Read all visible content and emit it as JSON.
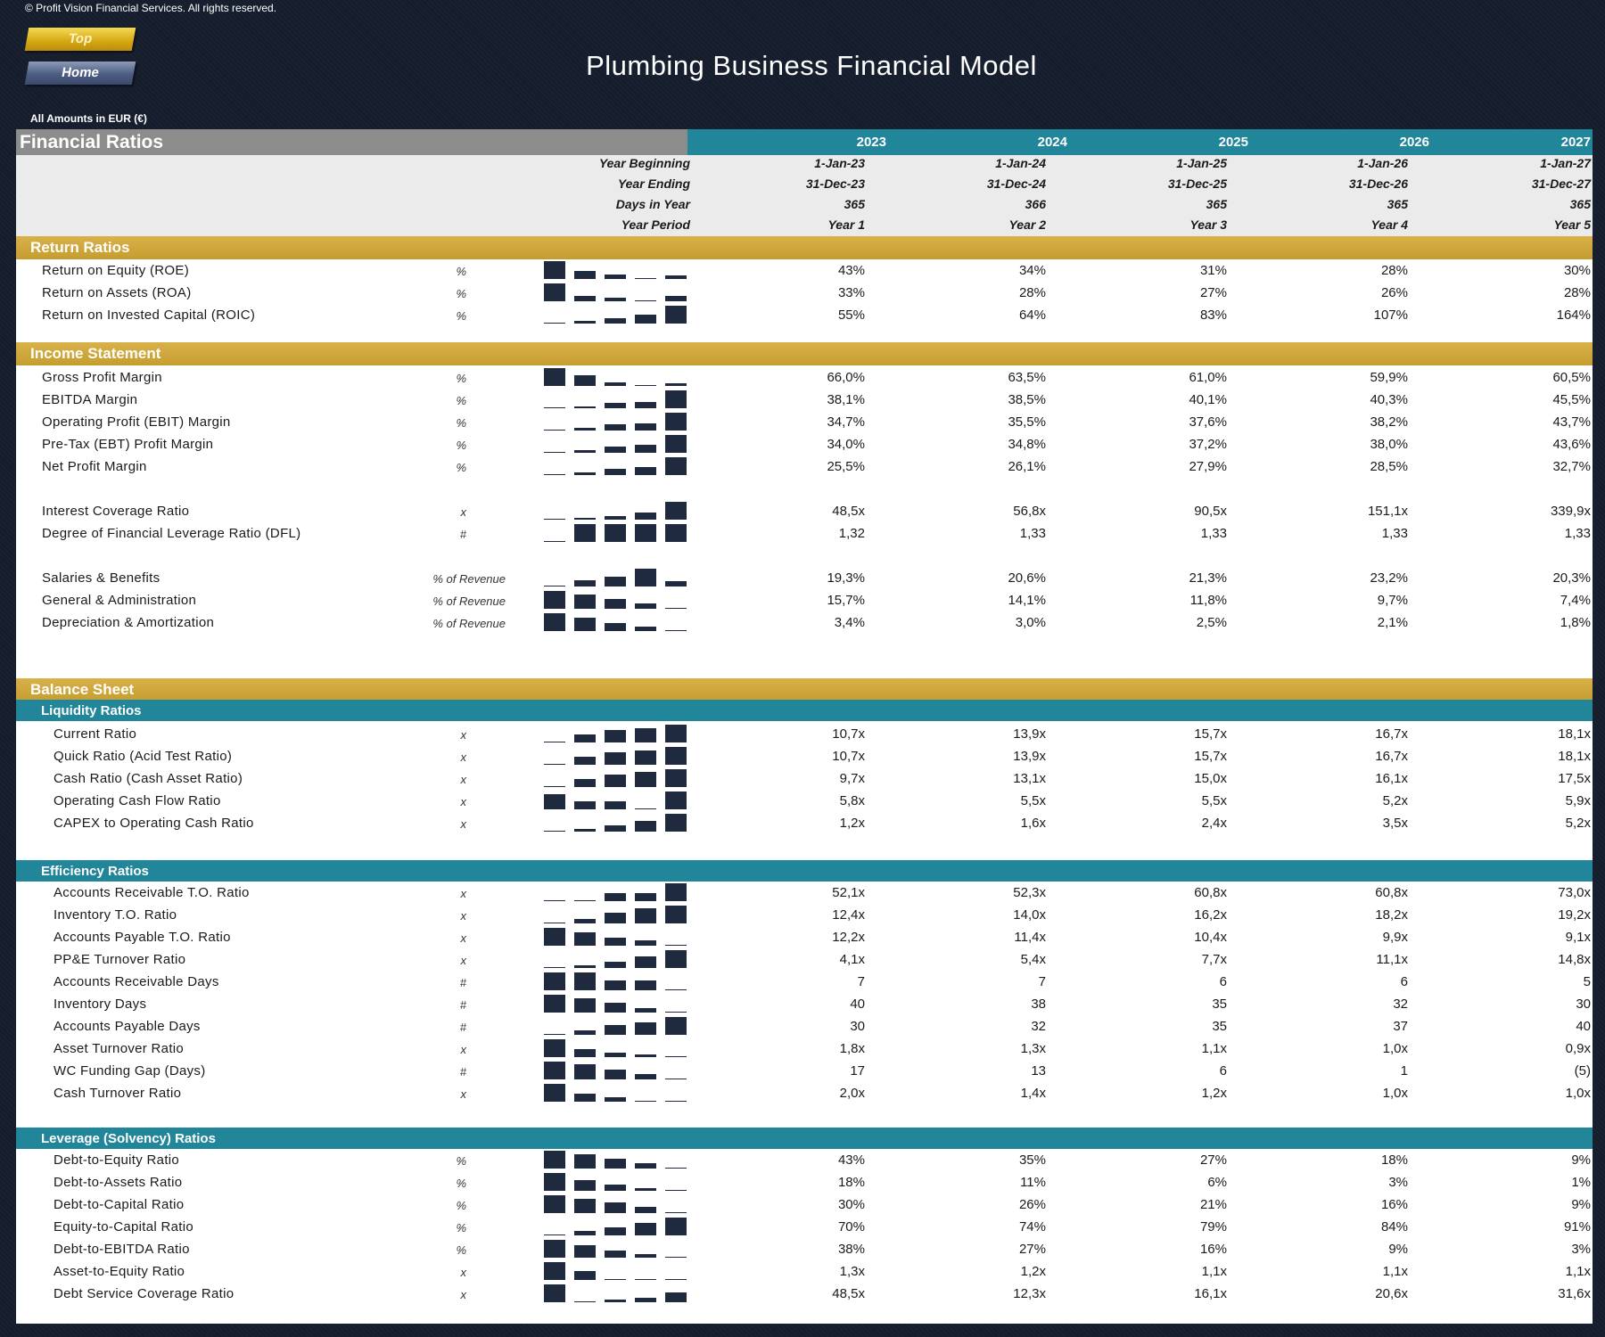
{
  "copyright": "© Profit Vision Financial Services. All rights reserved.",
  "nav": {
    "top_label": "Top",
    "home_label": "Home"
  },
  "title": "Plumbing Business Financial Model",
  "amounts_note": "All Amounts in  EUR (€)",
  "header": {
    "title": "Financial Ratios",
    "years": [
      "2023",
      "2024",
      "2025",
      "2026",
      "2027"
    ],
    "info_rows": [
      {
        "label": "Year Beginning",
        "values": [
          "1-Jan-23",
          "1-Jan-24",
          "1-Jan-25",
          "1-Jan-26",
          "1-Jan-27"
        ]
      },
      {
        "label": "Year Ending",
        "values": [
          "31-Dec-23",
          "31-Dec-24",
          "31-Dec-25",
          "31-Dec-26",
          "31-Dec-27"
        ]
      },
      {
        "label": "Days in Year",
        "values": [
          "365",
          "366",
          "365",
          "365",
          "365"
        ]
      },
      {
        "label": "Year Period",
        "values": [
          "Year 1",
          "Year 2",
          "Year 3",
          "Year 4",
          "Year 5"
        ]
      }
    ]
  },
  "sections": [
    {
      "kind": "section",
      "title": "Return Ratios"
    },
    {
      "kind": "row",
      "label": "Return on Equity (ROE)",
      "unit": "%",
      "values": [
        "43%",
        "34%",
        "31%",
        "28%",
        "30%"
      ],
      "spark": [
        43,
        34,
        31,
        28,
        30
      ]
    },
    {
      "kind": "row",
      "label": "Return on Assets (ROA)",
      "unit": "%",
      "values": [
        "33%",
        "28%",
        "27%",
        "26%",
        "28%"
      ],
      "spark": [
        33,
        28,
        27,
        26,
        28
      ]
    },
    {
      "kind": "row",
      "label": "Return on Invested Capital (ROIC)",
      "unit": "%",
      "values": [
        "55%",
        "64%",
        "83%",
        "107%",
        "164%"
      ],
      "spark": [
        55,
        64,
        83,
        107,
        164
      ]
    },
    {
      "kind": "section",
      "title": "Income Statement"
    },
    {
      "kind": "row",
      "label": "Gross Profit Margin",
      "unit": "%",
      "values": [
        "66,0%",
        "63,5%",
        "61,0%",
        "59,9%",
        "60,5%"
      ],
      "spark": [
        66.0,
        63.5,
        61.0,
        59.9,
        60.5
      ]
    },
    {
      "kind": "row",
      "label": "EBITDA Margin",
      "unit": "%",
      "values": [
        "38,1%",
        "38,5%",
        "40,1%",
        "40,3%",
        "45,5%"
      ],
      "spark": [
        38.1,
        38.5,
        40.1,
        40.3,
        45.5
      ]
    },
    {
      "kind": "row",
      "label": "Operating Profit (EBIT) Margin",
      "unit": "%",
      "values": [
        "34,7%",
        "35,5%",
        "37,6%",
        "38,2%",
        "43,7%"
      ],
      "spark": [
        34.7,
        35.5,
        37.6,
        38.2,
        43.7
      ]
    },
    {
      "kind": "row",
      "label": "Pre-Tax (EBT) Profit Margin",
      "unit": "%",
      "values": [
        "34,0%",
        "34,8%",
        "37,2%",
        "38,0%",
        "43,6%"
      ],
      "spark": [
        34.0,
        34.8,
        37.2,
        38.0,
        43.6
      ]
    },
    {
      "kind": "row",
      "label": "Net Profit Margin",
      "unit": "%",
      "values": [
        "25,5%",
        "26,1%",
        "27,9%",
        "28,5%",
        "32,7%"
      ],
      "spark": [
        25.5,
        26.1,
        27.9,
        28.5,
        32.7
      ]
    },
    {
      "kind": "row",
      "label": "Interest Coverage Ratio",
      "unit": "x",
      "values": [
        "48,5x",
        "56,8x",
        "90,5x",
        "151,1x",
        "339,9x"
      ],
      "spark": [
        48.5,
        56.8,
        90.5,
        151.1,
        339.9
      ]
    },
    {
      "kind": "row",
      "label": "Degree of Financial Leverage Ratio (DFL)",
      "unit": "#",
      "values": [
        "1,32",
        "1,33",
        "1,33",
        "1,33",
        "1,33"
      ],
      "spark": [
        1.32,
        1.33,
        1.33,
        1.33,
        1.33
      ]
    },
    {
      "kind": "row",
      "label": "Salaries & Benefits",
      "unit": "% of Revenue",
      "values": [
        "19,3%",
        "20,6%",
        "21,3%",
        "23,2%",
        "20,3%"
      ],
      "spark": [
        19.3,
        20.6,
        21.3,
        23.2,
        20.3
      ]
    },
    {
      "kind": "row",
      "label": "General & Administration",
      "unit": "% of Revenue",
      "values": [
        "15,7%",
        "14,1%",
        "11,8%",
        "9,7%",
        "7,4%"
      ],
      "spark": [
        15.7,
        14.1,
        11.8,
        9.7,
        7.4
      ]
    },
    {
      "kind": "row",
      "label": "Depreciation & Amortization",
      "unit": "% of Revenue",
      "values": [
        "3,4%",
        "3,0%",
        "2,5%",
        "2,1%",
        "1,8%"
      ],
      "spark": [
        3.4,
        3.0,
        2.5,
        2.1,
        1.8
      ]
    },
    {
      "kind": "section",
      "title": "Balance Sheet"
    },
    {
      "kind": "subsection",
      "title": "Liquidity Ratios"
    },
    {
      "kind": "row",
      "label": "Current Ratio",
      "unit": "x",
      "values": [
        "10,7x",
        "13,9x",
        "15,7x",
        "16,7x",
        "18,1x"
      ],
      "spark": [
        10.7,
        13.9,
        15.7,
        16.7,
        18.1
      ]
    },
    {
      "kind": "row",
      "label": "Quick Ratio (Acid Test Ratio)",
      "unit": "x",
      "values": [
        "10,7x",
        "13,9x",
        "15,7x",
        "16,7x",
        "18,1x"
      ],
      "spark": [
        10.7,
        13.9,
        15.7,
        16.7,
        18.1
      ]
    },
    {
      "kind": "row",
      "label": "Cash Ratio (Cash Asset Ratio)",
      "unit": "x",
      "values": [
        "9,7x",
        "13,1x",
        "15,0x",
        "16,1x",
        "17,5x"
      ],
      "spark": [
        9.7,
        13.1,
        15.0,
        16.1,
        17.5
      ]
    },
    {
      "kind": "row",
      "label": "Operating Cash Flow Ratio",
      "unit": "x",
      "values": [
        "5,8x",
        "5,5x",
        "5,5x",
        "5,2x",
        "5,9x"
      ],
      "spark": [
        5.8,
        5.5,
        5.5,
        5.2,
        5.9
      ]
    },
    {
      "kind": "row",
      "label": "CAPEX to Operating Cash Ratio",
      "unit": "x",
      "values": [
        "1,2x",
        "1,6x",
        "2,4x",
        "3,5x",
        "5,2x"
      ],
      "spark": [
        1.2,
        1.6,
        2.4,
        3.5,
        5.2
      ]
    },
    {
      "kind": "subsection",
      "title": "Efficiency Ratios"
    },
    {
      "kind": "row",
      "label": "Accounts Receivable T.O. Ratio",
      "unit": "x",
      "values": [
        "52,1x",
        "52,3x",
        "60,8x",
        "60,8x",
        "73,0x"
      ],
      "spark": [
        52.1,
        52.3,
        60.8,
        60.8,
        73.0
      ]
    },
    {
      "kind": "row",
      "label": "Inventory T.O. Ratio",
      "unit": "x",
      "values": [
        "12,4x",
        "14,0x",
        "16,2x",
        "18,2x",
        "19,2x"
      ],
      "spark": [
        12.4,
        14.0,
        16.2,
        18.2,
        19.2
      ]
    },
    {
      "kind": "row",
      "label": "Accounts Payable T.O. Ratio",
      "unit": "x",
      "values": [
        "12,2x",
        "11,4x",
        "10,4x",
        "9,9x",
        "9,1x"
      ],
      "spark": [
        12.2,
        11.4,
        10.4,
        9.9,
        9.1
      ]
    },
    {
      "kind": "row",
      "label": "PP&E Turnover Ratio",
      "unit": "x",
      "values": [
        "4,1x",
        "5,4x",
        "7,7x",
        "11,1x",
        "14,8x"
      ],
      "spark": [
        4.1,
        5.4,
        7.7,
        11.1,
        14.8
      ]
    },
    {
      "kind": "row",
      "label": "Accounts Receivable Days",
      "unit": "#",
      "values": [
        "7",
        "7",
        "6",
        "6",
        "5"
      ],
      "spark": [
        7,
        7,
        6,
        6,
        5
      ]
    },
    {
      "kind": "row",
      "label": "Inventory Days",
      "unit": "#",
      "values": [
        "40",
        "38",
        "35",
        "32",
        "30"
      ],
      "spark": [
        40,
        38,
        35,
        32,
        30
      ]
    },
    {
      "kind": "row",
      "label": "Accounts Payable Days",
      "unit": "#",
      "values": [
        "30",
        "32",
        "35",
        "37",
        "40"
      ],
      "spark": [
        30,
        32,
        35,
        37,
        40
      ]
    },
    {
      "kind": "row",
      "label": "Asset Turnover Ratio",
      "unit": "x",
      "values": [
        "1,8x",
        "1,3x",
        "1,1x",
        "1,0x",
        "0,9x"
      ],
      "spark": [
        1.8,
        1.3,
        1.1,
        1.0,
        0.9
      ]
    },
    {
      "kind": "row",
      "label": "WC Funding Gap (Days)",
      "unit": "#",
      "values": [
        "17",
        "13",
        "6",
        "1",
        "(5)"
      ],
      "spark": [
        17,
        13,
        6,
        1,
        -5
      ]
    },
    {
      "kind": "row",
      "label": "Cash Turnover Ratio",
      "unit": "x",
      "values": [
        "2,0x",
        "1,4x",
        "1,2x",
        "1,0x",
        "1,0x"
      ],
      "spark": [
        2.0,
        1.4,
        1.2,
        1.0,
        1.0
      ]
    },
    {
      "kind": "subsection",
      "title": "Leverage (Solvency) Ratios"
    },
    {
      "kind": "row",
      "label": "Debt-to-Equity Ratio",
      "unit": "%",
      "values": [
        "43%",
        "35%",
        "27%",
        "18%",
        "9%"
      ],
      "spark": [
        43,
        35,
        27,
        18,
        9
      ]
    },
    {
      "kind": "row",
      "label": "Debt-to-Assets Ratio",
      "unit": "%",
      "values": [
        "18%",
        "11%",
        "6%",
        "3%",
        "1%"
      ],
      "spark": [
        18,
        11,
        6,
        3,
        1
      ]
    },
    {
      "kind": "row",
      "label": "Debt-to-Capital Ratio",
      "unit": "%",
      "values": [
        "30%",
        "26%",
        "21%",
        "16%",
        "9%"
      ],
      "spark": [
        30,
        26,
        21,
        16,
        9
      ]
    },
    {
      "kind": "row",
      "label": "Equity-to-Capital Ratio",
      "unit": "%",
      "values": [
        "70%",
        "74%",
        "79%",
        "84%",
        "91%"
      ],
      "spark": [
        70,
        74,
        79,
        84,
        91
      ]
    },
    {
      "kind": "row",
      "label": "Debt-to-EBITDA Ratio",
      "unit": "%",
      "values": [
        "38%",
        "27%",
        "16%",
        "9%",
        "3%"
      ],
      "spark": [
        38,
        27,
        16,
        9,
        3
      ]
    },
    {
      "kind": "row",
      "label": "Asset-to-Equity Ratio",
      "unit": "x",
      "values": [
        "1,3x",
        "1,2x",
        "1,1x",
        "1,1x",
        "1,1x"
      ],
      "spark": [
        1.3,
        1.2,
        1.1,
        1.1,
        1.1
      ]
    },
    {
      "kind": "row",
      "label": "Debt Service Coverage Ratio",
      "unit": "x",
      "values": [
        "48,5x",
        "12,3x",
        "16,1x",
        "20,6x",
        "31,6x"
      ],
      "spark": [
        48.5,
        12.3,
        16.1,
        20.6,
        31.6
      ]
    }
  ],
  "colors": {
    "teal": "#22869a",
    "gold": "#c9a137",
    "navy": "#1f2a3f",
    "grey": "#8c8c8c"
  }
}
